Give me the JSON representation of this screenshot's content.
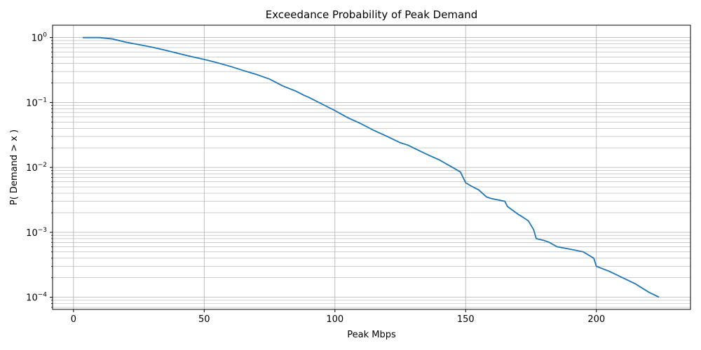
{
  "chart_data": {
    "type": "line",
    "title": "Exceedance Probability of Peak Demand",
    "xlabel": "Peak Mbps",
    "ylabel": "P( Demand > x )",
    "xlim": [
      -8,
      236
    ],
    "ylim": [
      6.5e-05,
      1.55
    ],
    "y_scale": "log",
    "grid": "both",
    "x_ticks": [
      0,
      50,
      100,
      150,
      200
    ],
    "x_tick_labels": [
      "0",
      "50",
      "100",
      "150",
      "200"
    ],
    "y_ticks": [
      0.0001,
      0.001,
      0.01,
      0.1,
      1
    ],
    "y_tick_labels": [
      {
        "base": "10",
        "exp": "−4"
      },
      {
        "base": "10",
        "exp": "−3"
      },
      {
        "base": "10",
        "exp": "−2"
      },
      {
        "base": "10",
        "exp": "−1"
      },
      {
        "base": "10",
        "exp": "0"
      }
    ],
    "series": [
      {
        "color": "#1f77b4",
        "x": [
          3.5,
          10,
          15,
          20,
          25,
          30,
          35,
          40,
          45,
          50,
          55,
          60,
          65,
          70,
          75,
          80,
          85,
          88,
          90,
          95,
          100,
          105,
          110,
          115,
          120,
          125,
          128,
          130,
          135,
          140,
          145,
          148,
          150,
          152,
          155,
          158,
          160,
          165,
          166,
          170,
          171,
          173,
          174,
          176,
          177,
          180,
          182,
          185,
          190,
          195,
          199,
          200,
          205,
          210,
          215,
          220,
          224
        ],
        "y": [
          1.0,
          1.0,
          0.95,
          0.85,
          0.78,
          0.71,
          0.64,
          0.57,
          0.51,
          0.46,
          0.41,
          0.36,
          0.31,
          0.27,
          0.23,
          0.18,
          0.15,
          0.13,
          0.12,
          0.095,
          0.075,
          0.058,
          0.047,
          0.037,
          0.03,
          0.024,
          0.022,
          0.02,
          0.016,
          0.013,
          0.01,
          0.0085,
          0.0058,
          0.0052,
          0.0045,
          0.0035,
          0.0033,
          0.003,
          0.0025,
          0.0019,
          0.0018,
          0.0016,
          0.0015,
          0.0011,
          0.0008,
          0.00075,
          0.0007,
          0.0006,
          0.00055,
          0.0005,
          0.0004,
          0.0003,
          0.00025,
          0.0002,
          0.00016,
          0.00012,
          0.0001
        ]
      }
    ]
  }
}
